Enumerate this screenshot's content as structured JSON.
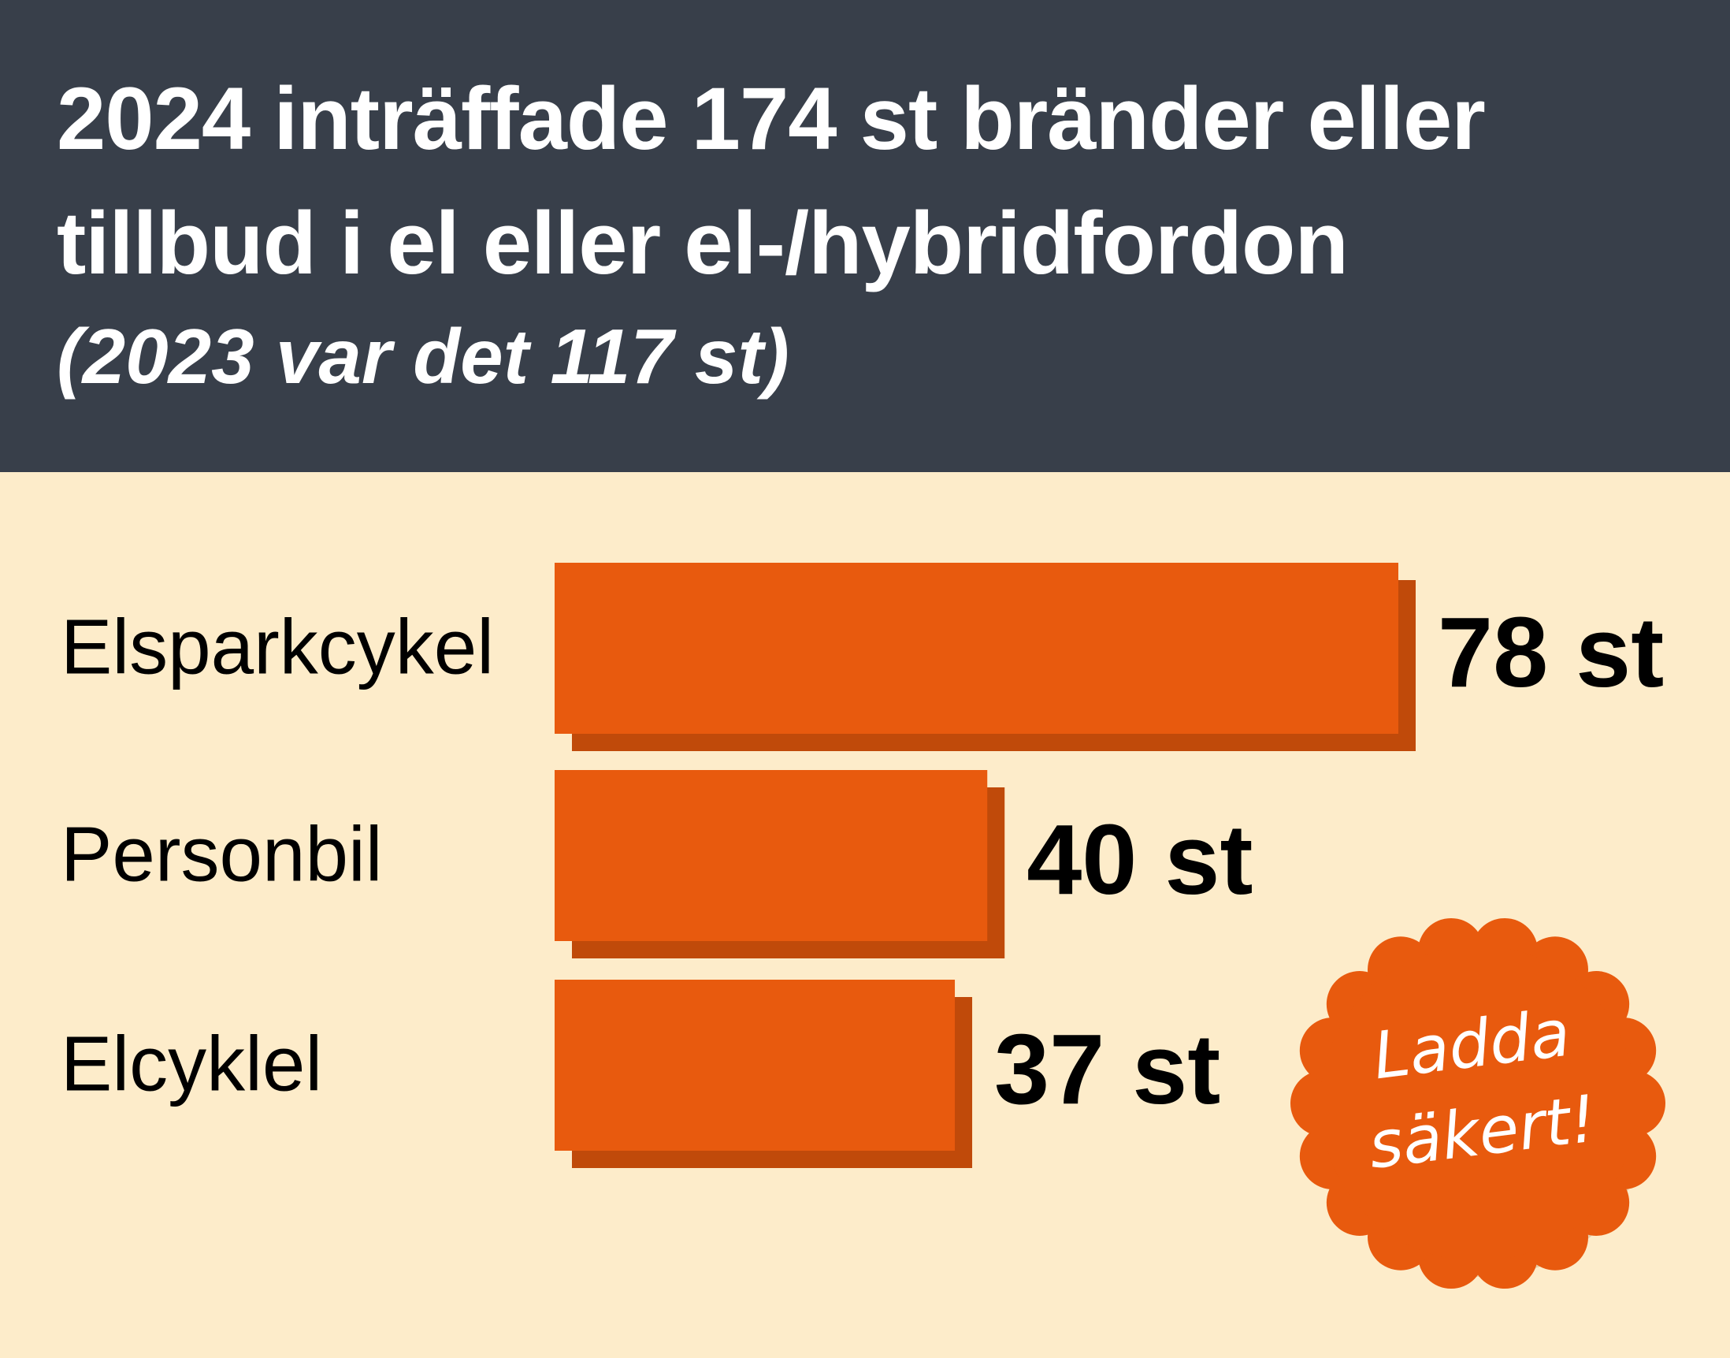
{
  "chart_data": {
    "type": "bar",
    "orientation": "horizontal",
    "title": "2024 inträffade 174 st bränder eller tillbud i el eller el-/hybridfordon",
    "subtitle": "(2023 var det 117 st)",
    "categories": [
      "Elsparkcykel",
      "Personbil",
      "Elcyklel"
    ],
    "values": [
      78,
      40,
      37
    ],
    "value_labels": [
      "78 st",
      "40 st",
      "37 st"
    ],
    "color": "#e85a0e",
    "annotation": "Ladda säkert!"
  }
}
